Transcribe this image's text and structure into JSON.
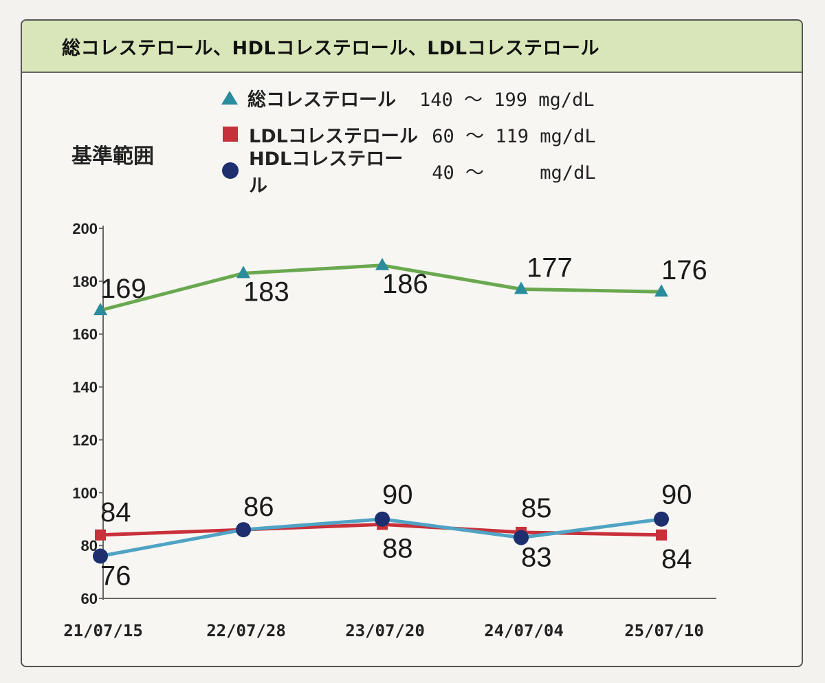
{
  "header": {
    "title": "総コレステロール、HDLコレステロール、LDLコレステロール"
  },
  "reference": {
    "title": "基準範囲",
    "rows": [
      {
        "name": "総コレステロール",
        "range": "140 ～ 199 mg/dL",
        "marker": "triangle-icon"
      },
      {
        "name": "LDLコレステロール",
        "range": " 60 ～ 119 mg/dL",
        "marker": "square-icon"
      },
      {
        "name": "HDLコレステロール",
        "range": " 40 ～     mg/dL",
        "marker": "circle-icon"
      }
    ]
  },
  "colors": {
    "total_line": "#6aa84f",
    "total_marker": "#2a8c9c",
    "ldl": "#c8303a",
    "hdl_line": "#4fa3c4",
    "hdl_marker": "#1d2f6e",
    "header_bg": "#d8e6ba"
  },
  "chart_data": {
    "type": "line",
    "categories": [
      "21/07/15",
      "22/07/28",
      "23/07/20",
      "24/07/04",
      "25/07/10"
    ],
    "ylim": [
      60,
      200
    ],
    "yticks": [
      "60",
      "80",
      "100",
      "120",
      "140",
      "160",
      "180",
      "200"
    ],
    "series": [
      {
        "name": "総コレステロール",
        "values": [
          169,
          183,
          186,
          177,
          176
        ],
        "labels": [
          "169",
          "183",
          "186",
          "177",
          "176"
        ]
      },
      {
        "name": "LDLコレステロール",
        "values": [
          84,
          86,
          88,
          85,
          84
        ],
        "labels": [
          "84",
          "86",
          "88",
          "85",
          "84"
        ]
      },
      {
        "name": "HDLコレステロール",
        "values": [
          76,
          86,
          90,
          83,
          90
        ],
        "labels": [
          "76",
          "86",
          "90",
          "83",
          "90"
        ]
      }
    ]
  }
}
